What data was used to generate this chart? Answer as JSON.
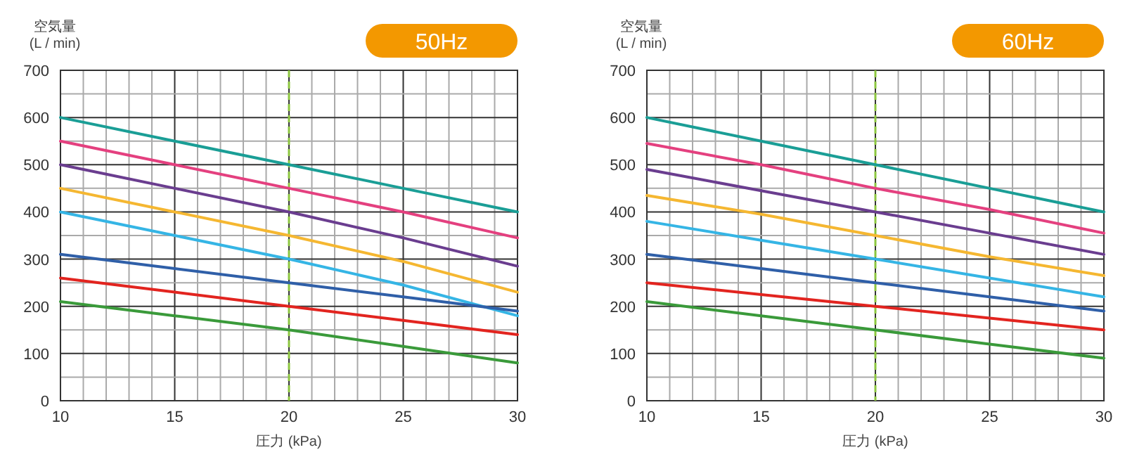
{
  "chart_data": [
    {
      "type": "line",
      "title": "50Hz",
      "xlabel": "圧力 (kPa)",
      "ylabel": "空気量\n(L / min)",
      "x": [
        10,
        15,
        20,
        25,
        30
      ],
      "xlim": [
        10,
        30
      ],
      "ylim": [
        0,
        700
      ],
      "xticks": [
        10,
        {
          "value": 11,
          "label": null
        },
        {
          "value": 12,
          "label": null
        },
        {
          "value": 13,
          "label": null
        },
        {
          "value": 14,
          "label": null
        },
        15,
        {
          "value": 16,
          "label": null
        },
        {
          "value": 17,
          "label": null
        },
        {
          "value": 18,
          "label": null
        },
        {
          "value": 19,
          "label": null
        },
        20,
        {
          "value": 21,
          "label": null
        },
        {
          "value": 22,
          "label": null
        },
        {
          "value": 23,
          "label": null
        },
        {
          "value": 24,
          "label": null
        },
        25,
        {
          "value": 26,
          "label": null
        },
        {
          "value": 27,
          "label": null
        },
        {
          "value": 28,
          "label": null
        },
        {
          "value": 29,
          "label": null
        },
        30
      ],
      "yticks": [
        0,
        {
          "value": 50,
          "label": null
        },
        100,
        {
          "value": 150,
          "label": null
        },
        200,
        {
          "value": 250,
          "label": null
        },
        300,
        {
          "value": 350,
          "label": null
        },
        400,
        {
          "value": 450,
          "label": null
        },
        500,
        {
          "value": 550,
          "label": null
        },
        600,
        {
          "value": 650,
          "label": null
        },
        700
      ],
      "grid": true,
      "ref_lines": [
        {
          "axis": "x",
          "value": 20,
          "color": "#8cc63f",
          "line_style": "dashed"
        }
      ],
      "series": [
        {
          "color": "#1a9e96",
          "values": [
            600,
            550,
            500,
            450,
            400
          ]
        },
        {
          "color": "#e4407f",
          "values": [
            550,
            500,
            450,
            400,
            345
          ]
        },
        {
          "color": "#6a3d8f",
          "values": [
            500,
            450,
            400,
            345,
            285
          ]
        },
        {
          "color": "#f5b731",
          "values": [
            450,
            400,
            350,
            295,
            230
          ]
        },
        {
          "color": "#35b5e5",
          "values": [
            400,
            350,
            300,
            245,
            180
          ]
        },
        {
          "color": "#2f5fa8",
          "values": [
            310,
            280,
            250,
            220,
            190
          ]
        },
        {
          "color": "#e2241f",
          "values": [
            260,
            230,
            200,
            170,
            140
          ]
        },
        {
          "color": "#3a9a3a",
          "values": [
            210,
            180,
            150,
            115,
            80
          ]
        }
      ]
    },
    {
      "type": "line",
      "title": "60Hz",
      "xlabel": "圧力 (kPa)",
      "ylabel": "空気量\n(L / min)",
      "x": [
        10,
        15,
        20,
        25,
        30
      ],
      "xlim": [
        10,
        30
      ],
      "ylim": [
        0,
        700
      ],
      "xticks": [
        10,
        {
          "value": 11,
          "label": null
        },
        {
          "value": 12,
          "label": null
        },
        {
          "value": 13,
          "label": null
        },
        {
          "value": 14,
          "label": null
        },
        15,
        {
          "value": 16,
          "label": null
        },
        {
          "value": 17,
          "label": null
        },
        {
          "value": 18,
          "label": null
        },
        {
          "value": 19,
          "label": null
        },
        20,
        {
          "value": 21,
          "label": null
        },
        {
          "value": 22,
          "label": null
        },
        {
          "value": 23,
          "label": null
        },
        {
          "value": 24,
          "label": null
        },
        25,
        {
          "value": 26,
          "label": null
        },
        {
          "value": 27,
          "label": null
        },
        {
          "value": 28,
          "label": null
        },
        {
          "value": 29,
          "label": null
        },
        30
      ],
      "yticks": [
        0,
        {
          "value": 50,
          "label": null
        },
        100,
        {
          "value": 150,
          "label": null
        },
        200,
        {
          "value": 250,
          "label": null
        },
        300,
        {
          "value": 350,
          "label": null
        },
        400,
        {
          "value": 450,
          "label": null
        },
        500,
        {
          "value": 550,
          "label": null
        },
        600,
        {
          "value": 650,
          "label": null
        },
        700
      ],
      "grid": true,
      "ref_lines": [
        {
          "axis": "x",
          "value": 20,
          "color": "#8cc63f",
          "line_style": "dashed"
        }
      ],
      "series": [
        {
          "color": "#1a9e96",
          "values": [
            600,
            550,
            500,
            450,
            400
          ]
        },
        {
          "color": "#e4407f",
          "values": [
            545,
            500,
            450,
            405,
            355
          ]
        },
        {
          "color": "#6a3d8f",
          "values": [
            490,
            445,
            400,
            355,
            310
          ]
        },
        {
          "color": "#f5b731",
          "values": [
            435,
            395,
            350,
            305,
            265
          ]
        },
        {
          "color": "#35b5e5",
          "values": [
            380,
            340,
            300,
            260,
            220
          ]
        },
        {
          "color": "#2f5fa8",
          "values": [
            310,
            280,
            250,
            220,
            190
          ]
        },
        {
          "color": "#e2241f",
          "values": [
            250,
            225,
            200,
            175,
            150
          ]
        },
        {
          "color": "#3a9a3a",
          "values": [
            210,
            180,
            150,
            120,
            90
          ]
        }
      ]
    }
  ]
}
